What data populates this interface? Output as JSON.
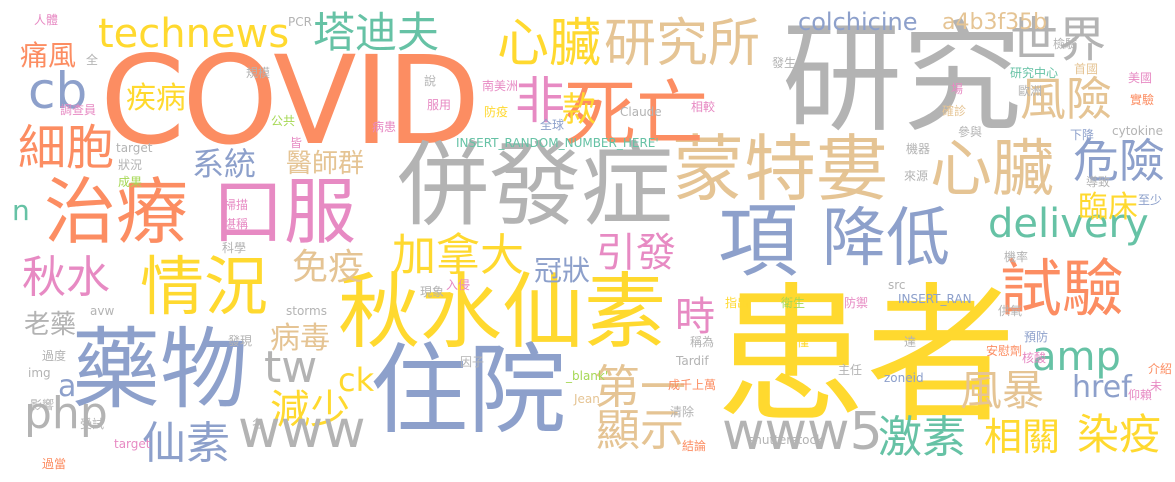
{
  "palette": {
    "orange": "#fc8d62",
    "gray": "#b3b3b3",
    "blue": "#8da0cb",
    "yellow": "#ffd92f",
    "tan": "#e5c494",
    "green": "#66c2a5",
    "pink": "#e78ac3",
    "lime": "#a6d854"
  },
  "words": [
    {
      "text": "COVID",
      "color": "orange"
    },
    {
      "text": "研究",
      "color": "gray"
    },
    {
      "text": "患者",
      "color": "yellow"
    },
    {
      "text": "併發症",
      "color": "gray"
    },
    {
      "text": "住院",
      "color": "blue"
    },
    {
      "text": "項",
      "color": "blue"
    },
    {
      "text": "藥物",
      "color": "blue"
    },
    {
      "text": "秋水仙素",
      "color": "yellow"
    },
    {
      "text": "蒙特婁",
      "color": "tan"
    },
    {
      "text": "治療",
      "color": "orange"
    },
    {
      "text": "口服",
      "color": "pink"
    },
    {
      "text": "死亡",
      "color": "orange"
    },
    {
      "text": "降低",
      "color": "blue"
    },
    {
      "text": "情況",
      "color": "yellow"
    },
    {
      "text": "心臟",
      "color": "yellow"
    },
    {
      "text": "心臟",
      "color": "tan"
    },
    {
      "text": "研究所",
      "color": "tan"
    },
    {
      "text": "試驗",
      "color": "orange"
    },
    {
      "text": "technews",
      "color": "yellow"
    },
    {
      "text": "塔迪夫",
      "color": "green"
    },
    {
      "text": "世界",
      "color": "gray"
    },
    {
      "text": "非",
      "color": "pink"
    },
    {
      "text": "風險",
      "color": "tan"
    },
    {
      "text": "cb",
      "color": "blue"
    },
    {
      "text": "細胞",
      "color": "orange"
    },
    {
      "text": "危險",
      "color": "blue"
    },
    {
      "text": "delivery",
      "color": "green"
    },
    {
      "text": "加拿大",
      "color": "yellow"
    },
    {
      "text": "colchicine",
      "color": "blue"
    },
    {
      "text": "a4b3f35b",
      "color": "tan"
    },
    {
      "text": "痛風",
      "color": "orange"
    },
    {
      "text": "疾病",
      "color": "yellow"
    },
    {
      "text": "系統",
      "color": "blue"
    },
    {
      "text": "醫師群",
      "color": "tan"
    },
    {
      "text": "款",
      "color": "yellow"
    },
    {
      "text": "引發",
      "color": "pink"
    },
    {
      "text": "臨床",
      "color": "yellow"
    },
    {
      "text": "amp",
      "color": "green"
    },
    {
      "text": "秋水",
      "color": "pink"
    },
    {
      "text": "免疫",
      "color": "tan"
    },
    {
      "text": "冠狀",
      "color": "blue"
    },
    {
      "text": "tw",
      "color": "gray"
    },
    {
      "text": "病毒",
      "color": "tan"
    },
    {
      "text": "時",
      "color": "pink"
    },
    {
      "text": "第一",
      "color": "tan"
    },
    {
      "text": "風暴",
      "color": "tan"
    },
    {
      "text": "href",
      "color": "blue"
    },
    {
      "text": "老藥",
      "color": "gray"
    },
    {
      "text": "減少",
      "color": "yellow"
    },
    {
      "text": "php",
      "color": "gray"
    },
    {
      "text": "仙素",
      "color": "blue"
    },
    {
      "text": "www",
      "color": "gray"
    },
    {
      "text": "顯示",
      "color": "tan"
    },
    {
      "text": "www5",
      "color": "gray"
    },
    {
      "text": "激素",
      "color": "green"
    },
    {
      "text": "相關",
      "color": "yellow"
    },
    {
      "text": "染疫",
      "color": "yellow"
    },
    {
      "text": "ck",
      "color": "yellow"
    },
    {
      "text": "a",
      "color": "blue"
    },
    {
      "text": "n",
      "color": "green"
    },
    {
      "text": "人體",
      "color": "pink"
    },
    {
      "text": "PCR",
      "color": "gray"
    },
    {
      "text": "全",
      "color": "gray"
    },
    {
      "text": "規模",
      "color": "gray"
    },
    {
      "text": "說",
      "color": "gray"
    },
    {
      "text": "南美洲",
      "color": "pink"
    },
    {
      "text": "發生",
      "color": "gray"
    },
    {
      "text": "研究中心",
      "color": "green"
    },
    {
      "text": "首國",
      "color": "tan"
    },
    {
      "text": "美國",
      "color": "pink"
    },
    {
      "text": "實驗",
      "color": "orange"
    },
    {
      "text": "檢驗",
      "color": "gray"
    },
    {
      "text": "調查員",
      "color": "pink"
    },
    {
      "text": "公共",
      "color": "lime"
    },
    {
      "text": "病患",
      "color": "pink"
    },
    {
      "text": "服用",
      "color": "pink"
    },
    {
      "text": "防疫",
      "color": "yellow"
    },
    {
      "text": "全球",
      "color": "blue"
    },
    {
      "text": "Claude",
      "color": "gray"
    },
    {
      "text": "相較",
      "color": "pink"
    },
    {
      "text": "場",
      "color": "pink"
    },
    {
      "text": "確診",
      "color": "tan"
    },
    {
      "text": "歐洲",
      "color": "gray"
    },
    {
      "text": "參與",
      "color": "gray"
    },
    {
      "text": "下降",
      "color": "blue"
    },
    {
      "text": "cytokine",
      "color": "gray"
    },
    {
      "text": "皆",
      "color": "pink"
    },
    {
      "text": "INSERT_RANDOM_NUMBER_HERE'",
      "color": "green"
    },
    {
      "text": "target",
      "color": "gray"
    },
    {
      "text": "機器",
      "color": "gray"
    },
    {
      "text": "來源",
      "color": "gray"
    },
    {
      "text": "狀況",
      "color": "gray"
    },
    {
      "text": "成果",
      "color": "lime"
    },
    {
      "text": "導致",
      "color": "gray"
    },
    {
      "text": "至少",
      "color": "blue"
    },
    {
      "text": "掃描",
      "color": "pink"
    },
    {
      "text": "堪稱",
      "color": "pink"
    },
    {
      "text": "科學",
      "color": "gray"
    },
    {
      "text": "機率",
      "color": "gray"
    },
    {
      "text": "src",
      "color": "gray"
    },
    {
      "text": "INSERT_RAN",
      "color": "blue"
    },
    {
      "text": "現象",
      "color": "gray"
    },
    {
      "text": "入侵",
      "color": "pink"
    },
    {
      "text": "指出",
      "color": "yellow"
    },
    {
      "text": "衛生",
      "color": "lime"
    },
    {
      "text": "防禦",
      "color": "pink"
    },
    {
      "text": "供氧",
      "color": "gray"
    },
    {
      "text": "storms",
      "color": "gray"
    },
    {
      "text": "avw",
      "color": "gray"
    },
    {
      "text": "預防",
      "color": "blue"
    },
    {
      "text": "核酸",
      "color": "pink"
    },
    {
      "text": "發現",
      "color": "gray"
    },
    {
      "text": "稱為",
      "color": "gray"
    },
    {
      "text": "僅",
      "color": "yellow"
    },
    {
      "text": "達",
      "color": "gray"
    },
    {
      "text": "安慰劑",
      "color": "orange"
    },
    {
      "text": "過度",
      "color": "gray"
    },
    {
      "text": "因子",
      "color": "gray"
    },
    {
      "text": "Tardif",
      "color": "gray"
    },
    {
      "text": "主任",
      "color": "gray"
    },
    {
      "text": "介紹",
      "color": "orange"
    },
    {
      "text": "img",
      "color": "gray"
    },
    {
      "text": "_blank'",
      "color": "lime"
    },
    {
      "text": "zoneid",
      "color": "blue"
    },
    {
      "text": "未",
      "color": "pink"
    },
    {
      "text": "成千上萬",
      "color": "orange"
    },
    {
      "text": "仰賴",
      "color": "pink"
    },
    {
      "text": "影響",
      "color": "gray"
    },
    {
      "text": "Jean",
      "color": "tan"
    },
    {
      "text": "受試",
      "color": "gray"
    },
    {
      "text": "名",
      "color": "gray"
    },
    {
      "text": "清除",
      "color": "gray"
    },
    {
      "text": "target",
      "color": "pink"
    },
    {
      "text": "結論",
      "color": "orange"
    },
    {
      "text": "shutterstock",
      "color": "gray"
    },
    {
      "text": "過當",
      "color": "orange"
    }
  ]
}
